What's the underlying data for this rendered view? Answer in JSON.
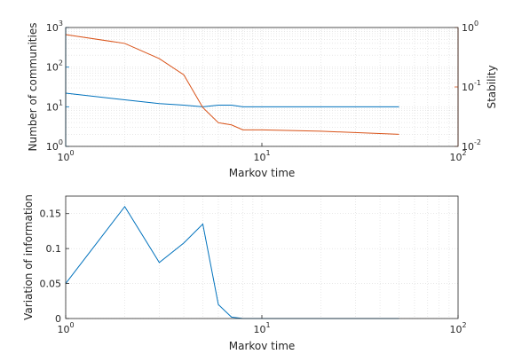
{
  "chart_data": [
    {
      "type": "line",
      "xscale": "log",
      "xlim": [
        1,
        100
      ],
      "x_ticks": [
        1,
        10,
        100
      ],
      "x_tick_labels": [
        [
          "10",
          "0"
        ],
        [
          "10",
          "1"
        ],
        [
          "10",
          "2"
        ]
      ],
      "xlabel": "Markov time",
      "grid": true,
      "left_axis": {
        "ylabel": "Number of communities",
        "yscale": "log",
        "ylim": [
          1,
          1000
        ],
        "ticks": [
          1,
          10,
          100,
          1000
        ],
        "tick_labels": [
          [
            "10",
            "0"
          ],
          [
            "10",
            "1"
          ],
          [
            "10",
            "2"
          ],
          [
            "10",
            "3"
          ]
        ],
        "color": "#0072bd"
      },
      "right_axis": {
        "ylabel": "Stability",
        "yscale": "log",
        "ylim": [
          0.01,
          1
        ],
        "ticks": [
          0.01,
          0.1,
          1
        ],
        "tick_labels": [
          [
            "10",
            "-2"
          ],
          [
            "10",
            "-1"
          ],
          [
            "10",
            "0"
          ]
        ],
        "color": "#d95319"
      },
      "series": [
        {
          "name": "Number of communities",
          "axis": "left",
          "color": "#0072bd",
          "x": [
            1,
            2,
            3,
            4,
            5,
            6,
            7,
            8,
            10,
            20,
            50
          ],
          "y": [
            22,
            15,
            12,
            11,
            10,
            11,
            11,
            10,
            10,
            10,
            10
          ]
        },
        {
          "name": "Stability",
          "axis": "right",
          "color": "#d95319",
          "x": [
            1,
            2,
            3,
            4,
            5,
            6,
            7,
            8,
            10,
            20,
            50
          ],
          "y": [
            0.76,
            0.54,
            0.3,
            0.16,
            0.045,
            0.025,
            0.023,
            0.019,
            0.019,
            0.018,
            0.016
          ]
        }
      ]
    },
    {
      "type": "line",
      "xscale": "log",
      "xlim": [
        1,
        100
      ],
      "x_ticks": [
        1,
        10,
        100
      ],
      "x_tick_labels": [
        [
          "10",
          "0"
        ],
        [
          "10",
          "1"
        ],
        [
          "10",
          "2"
        ]
      ],
      "xlabel": "Markov time",
      "ylabel": "Variation of information",
      "ylim": [
        0,
        0.175
      ],
      "y_ticks": [
        0,
        0.05,
        0.1,
        0.15
      ],
      "y_tick_labels": [
        "0",
        "0.05",
        "0.1",
        "0.15"
      ],
      "grid": true,
      "series": [
        {
          "name": "Variation of information",
          "color": "#0072bd",
          "x": [
            1,
            2,
            3,
            4,
            5,
            6,
            7,
            8,
            10,
            20,
            50
          ],
          "y": [
            0.05,
            0.16,
            0.08,
            0.108,
            0.135,
            0.02,
            0.002,
            0,
            0,
            0,
            0
          ]
        }
      ]
    }
  ]
}
